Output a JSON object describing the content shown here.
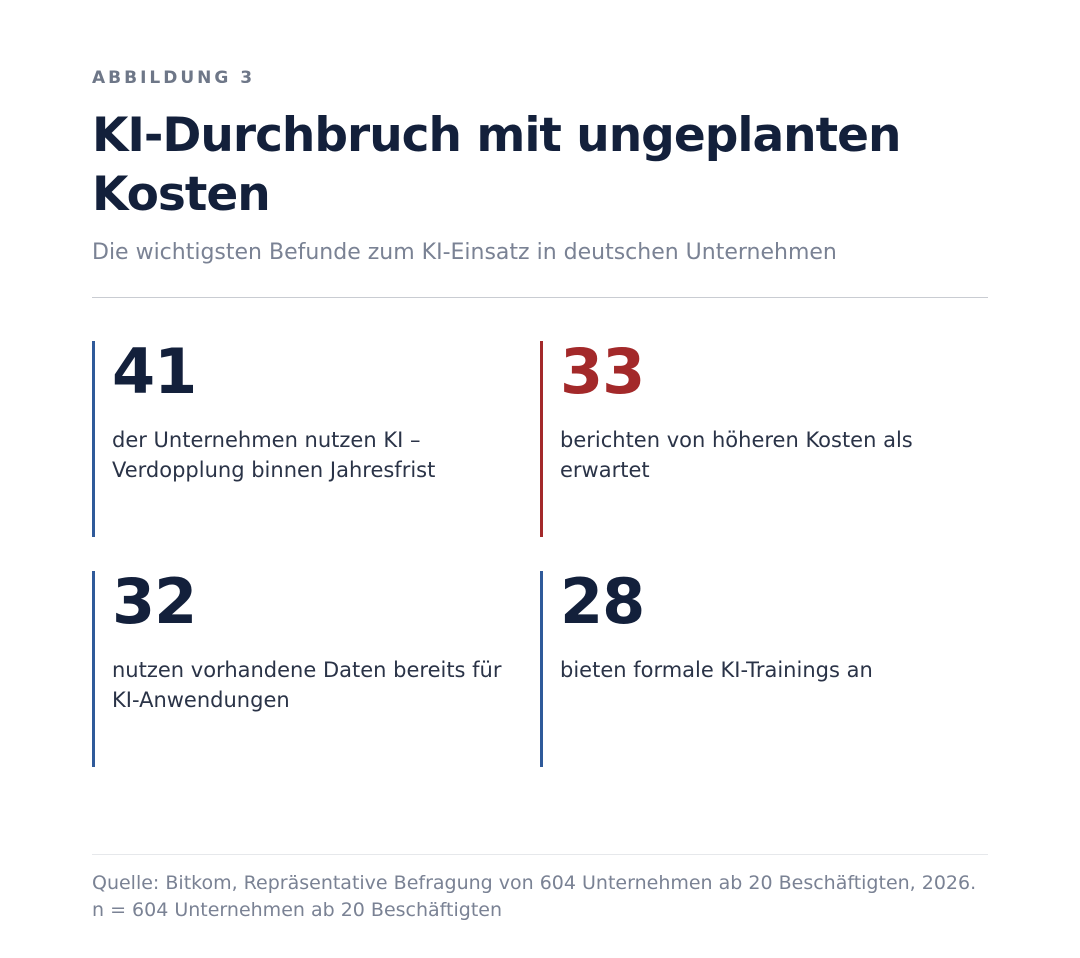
{
  "kicker": "ABBILDUNG 3",
  "title": "KI-Durchbruch mit ungeplanten Kosten",
  "subtitle": "Die wichtigsten Befunde zum KI-Einsatz in deutschen Unternehmen",
  "stats": [
    {
      "value": "41",
      "label": "der Unternehmen nutzen KI – Verdopplung binnen Jahresfrist",
      "color": "#13203b",
      "bar_color": "#2f5a9a"
    },
    {
      "value": "33",
      "label": "berichten von höheren Kosten als erwartet",
      "color": "#a3292a",
      "bar_color": "#a3292a"
    },
    {
      "value": "32",
      "label": "nutzen vorhandene Daten bereits für KI-Anwendungen",
      "color": "#13203b",
      "bar_color": "#2f5a9a"
    },
    {
      "value": "28",
      "label": "bieten formale KI-Trainings an",
      "color": "#13203b",
      "bar_color": "#2f5a9a"
    }
  ],
  "source": "Quelle: Bitkom, Repräsentative Befragung von 604 Unternehmen ab 20 Beschäftigten, 2026. n = 604 Unternehmen ab 20 Beschäftigten"
}
